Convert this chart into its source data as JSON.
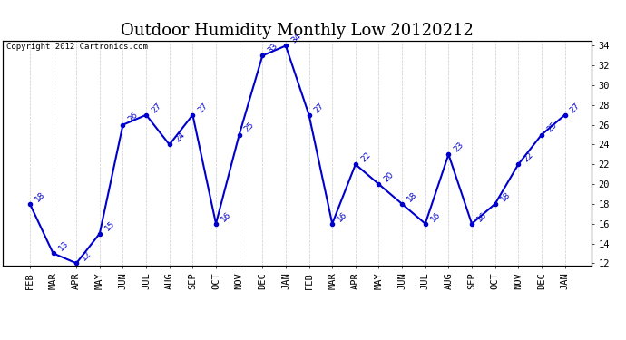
{
  "title": "Outdoor Humidity Monthly Low 20120212",
  "copyright": "Copyright 2012 Cartronics.com",
  "x_labels": [
    "FEB",
    "MAR",
    "APR",
    "MAY",
    "JUN",
    "JUL",
    "AUG",
    "SEP",
    "OCT",
    "NOV",
    "DEC",
    "JAN",
    "FEB",
    "MAR",
    "APR",
    "MAY",
    "JUN",
    "JUL",
    "AUG",
    "SEP",
    "OCT",
    "NOV",
    "DEC",
    "JAN"
  ],
  "y_values": [
    18,
    13,
    12,
    15,
    26,
    27,
    24,
    27,
    16,
    25,
    33,
    34,
    27,
    16,
    22,
    20,
    18,
    16,
    23,
    16,
    18,
    22,
    25,
    27
  ],
  "ylim_min": 12,
  "ylim_max": 34,
  "line_color": "#0000cc",
  "marker_color": "#0000cc",
  "bg_color": "#ffffff",
  "grid_color": "#cccccc",
  "title_fontsize": 13,
  "copyright_fontsize": 6.5,
  "label_fontsize": 6.5,
  "tick_fontsize": 7.5
}
